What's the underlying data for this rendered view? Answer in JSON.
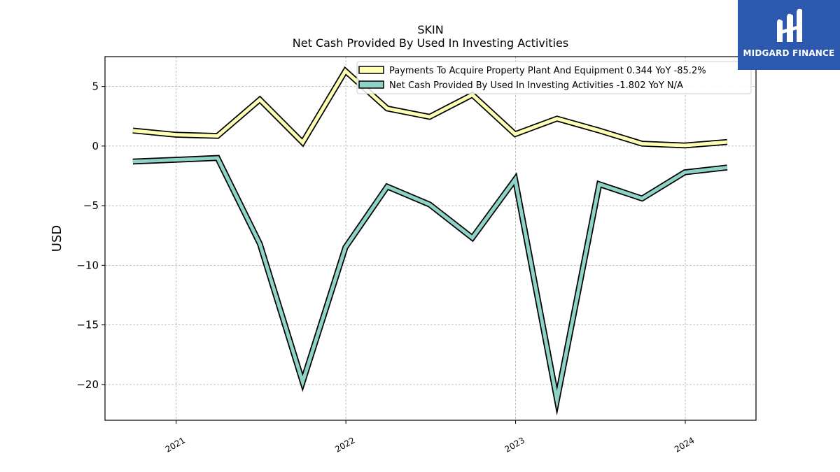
{
  "logo": {
    "text": "MIDGARD FINANCE",
    "bg_color": "#2c58ad"
  },
  "chart_data": {
    "type": "line",
    "title": "SKIN",
    "subtitle": "Net Cash Provided By Used In Investing Activities",
    "ylabel": "USD",
    "xlabel": "",
    "ylim": [
      -23,
      7.5
    ],
    "xlim": [
      "2020-08-01",
      "2024-06-01"
    ],
    "xticks": [
      "2021",
      "2022",
      "2023",
      "2024"
    ],
    "yticks": [
      5,
      0,
      -5,
      -10,
      -15,
      -20
    ],
    "ytick_labels": [
      "5",
      "0",
      "−5",
      "−10",
      "−15",
      "−20"
    ],
    "grid": true,
    "legend_position": "top-right",
    "x": [
      "2020-09-30",
      "2020-12-31",
      "2021-03-31",
      "2021-06-30",
      "2021-09-30",
      "2021-12-31",
      "2022-03-31",
      "2022-06-30",
      "2022-09-30",
      "2022-12-31",
      "2023-03-31",
      "2023-06-30",
      "2023-09-30",
      "2023-12-31",
      "2024-03-31"
    ],
    "series": [
      {
        "name": "Payments To Acquire Property Plant And Equipment",
        "legend_label": "Payments To Acquire Property Plant And Equipment  0.344 YoY -85.2%",
        "color": "#ffffb3",
        "values": [
          1.3,
          0.95,
          0.85,
          3.9,
          0.3,
          6.3,
          3.15,
          2.45,
          4.3,
          1.0,
          2.3,
          1.3,
          0.2,
          0.05,
          0.34
        ]
      },
      {
        "name": "Net Cash Provided By Used In Investing Activities",
        "legend_label": "Net Cash Provided By Used In Investing Activities  -1.802 YoY N/A",
        "color": "#8dd3c7",
        "values": [
          -1.3,
          -1.15,
          -1.0,
          -8.2,
          -19.8,
          -8.5,
          -3.4,
          -4.9,
          -7.7,
          -2.8,
          -21.3,
          -3.2,
          -4.4,
          -2.2,
          -1.8
        ]
      }
    ]
  }
}
